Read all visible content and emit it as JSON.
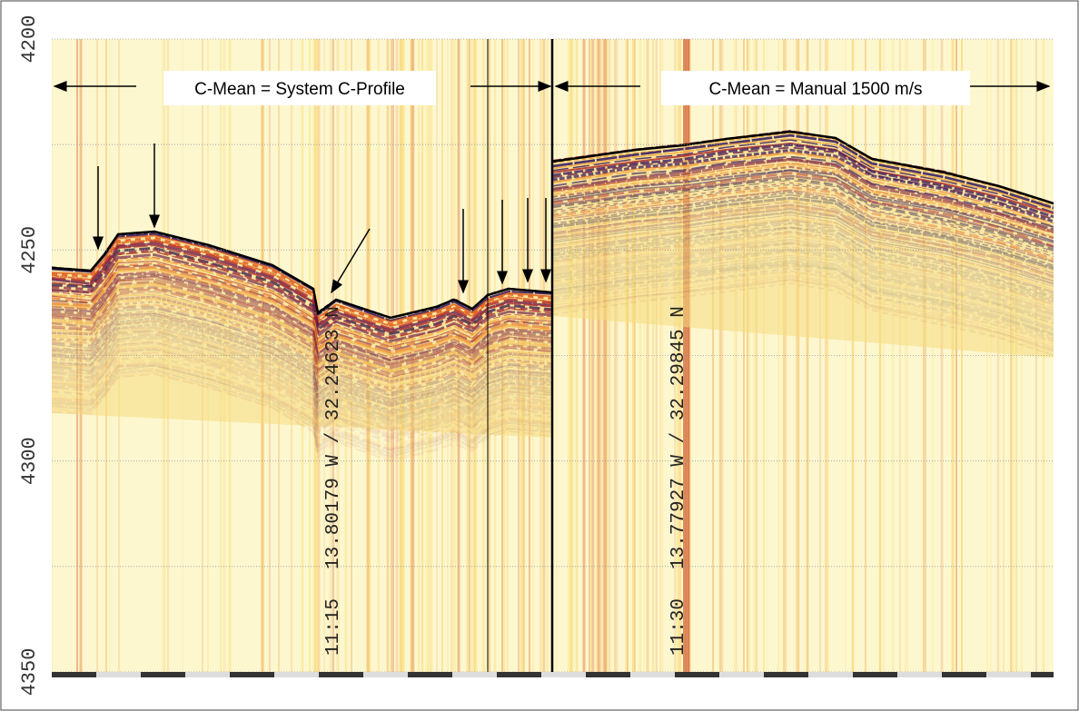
{
  "depth_axis": {
    "ticks": [
      "4200",
      "4250",
      "4300",
      "4350"
    ]
  },
  "annotations": {
    "left_label": "C-Mean = System C-Profile",
    "right_label": "C-Mean = Manual 1500 m/s"
  },
  "tracks": [
    {
      "time": "11:15",
      "position": "13.80179 W / 32.24623 N"
    },
    {
      "time": "11:30",
      "position": "13.77927 W / 32.29845 N"
    }
  ]
}
